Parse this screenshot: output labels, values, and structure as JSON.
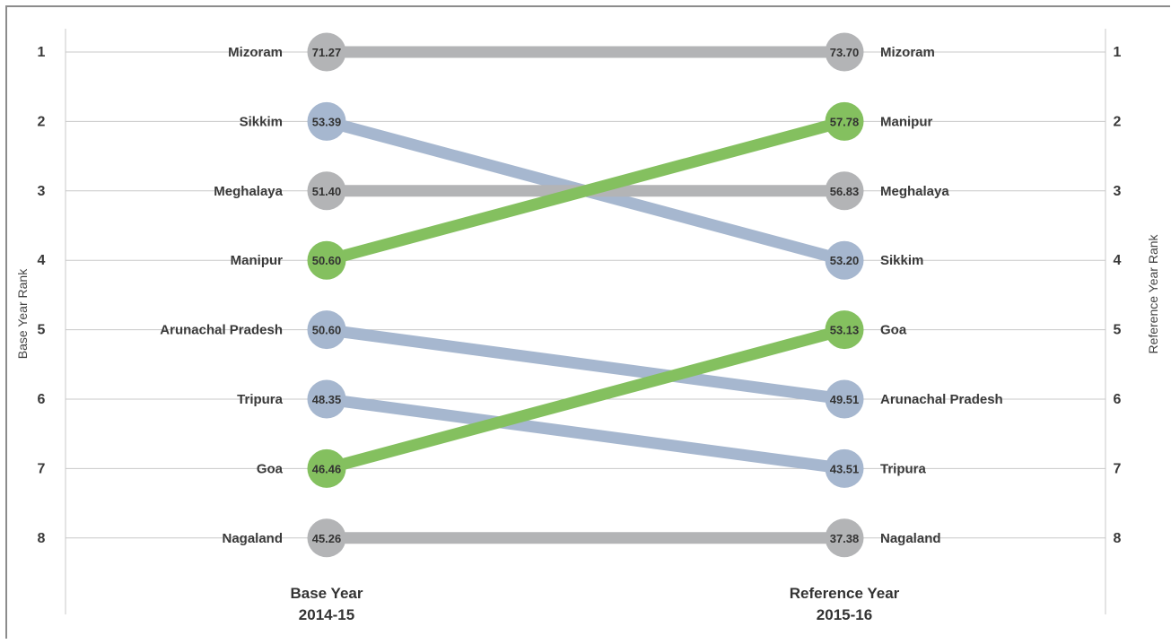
{
  "colors": {
    "stable": "#b3b4b6",
    "down": "#a6b7cf",
    "up": "#84c05f",
    "grid": "#c8c8c8",
    "frame": "#8c8c8c"
  },
  "chart_data": {
    "type": "slope",
    "left_axis_label": "Base Year Rank",
    "right_axis_label": "Reference Year  Rank",
    "ranks": [
      "1",
      "2",
      "3",
      "4",
      "5",
      "6",
      "7",
      "8"
    ],
    "left_column": {
      "title": "Base Year",
      "subtitle": "2014-15"
    },
    "right_column": {
      "title": "Reference Year",
      "subtitle": "2015-16"
    },
    "series": [
      {
        "name": "Mizoram",
        "base_rank": 1,
        "base_value": "71.27",
        "ref_rank": 1,
        "ref_value": "73.70",
        "trend": "stable"
      },
      {
        "name": "Sikkim",
        "base_rank": 2,
        "base_value": "53.39",
        "ref_rank": 4,
        "ref_value": "53.20",
        "trend": "down"
      },
      {
        "name": "Meghalaya",
        "base_rank": 3,
        "base_value": "51.40",
        "ref_rank": 3,
        "ref_value": "56.83",
        "trend": "stable"
      },
      {
        "name": "Manipur",
        "base_rank": 4,
        "base_value": "50.60",
        "ref_rank": 2,
        "ref_value": "57.78",
        "trend": "up"
      },
      {
        "name": "Arunachal Pradesh",
        "base_rank": 5,
        "base_value": "50.60",
        "ref_rank": 6,
        "ref_value": "49.51",
        "trend": "down"
      },
      {
        "name": "Tripura",
        "base_rank": 6,
        "base_value": "48.35",
        "ref_rank": 7,
        "ref_value": "43.51",
        "trend": "down"
      },
      {
        "name": "Goa",
        "base_rank": 7,
        "base_value": "46.46",
        "ref_rank": 5,
        "ref_value": "53.13",
        "trend": "up"
      },
      {
        "name": "Nagaland",
        "base_rank": 8,
        "base_value": "45.26",
        "ref_rank": 8,
        "ref_value": "37.38",
        "trend": "stable"
      }
    ]
  }
}
